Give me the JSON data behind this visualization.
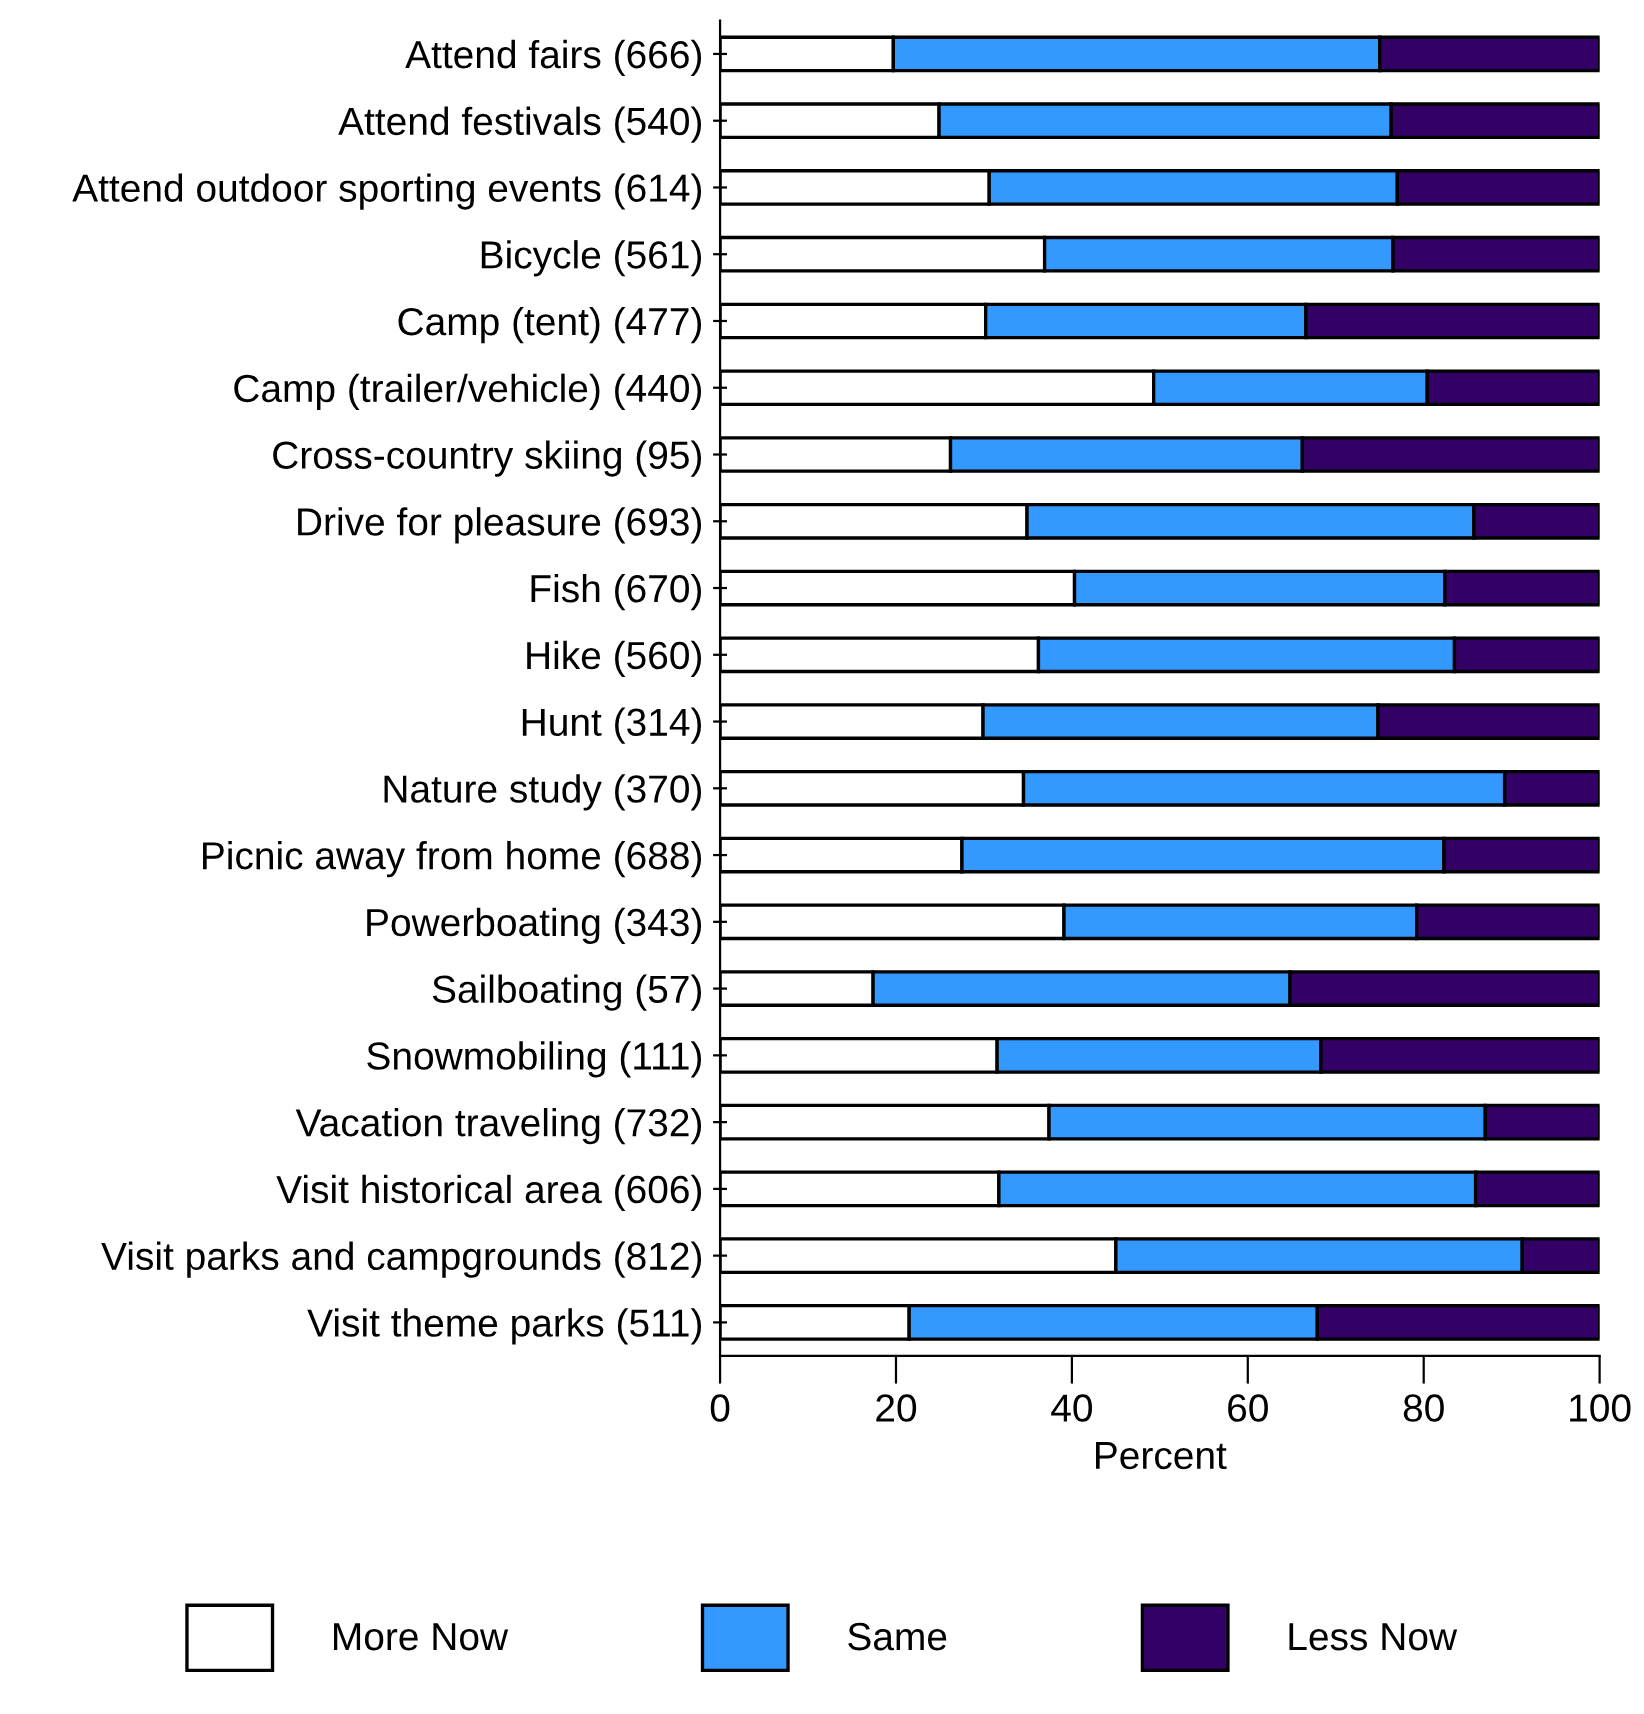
{
  "chart_data": {
    "type": "bar",
    "orientation": "horizontal",
    "stacked": true,
    "xlabel": "Percent",
    "categories": [
      "Attend fairs (666)",
      "Attend festivals (540)",
      "Attend outdoor sporting events (614)",
      "Bicycle (561)",
      "Camp (tent) (477)",
      "Camp (trailer/vehicle) (440)",
      "Cross-country skiing (95)",
      "Drive for pleasure (693)",
      "Fish (670)",
      "Hike (560)",
      "Hunt (314)",
      "Nature study (370)",
      "Picnic away from home (688)",
      "Powerboating (343)",
      "Sailboating (57)",
      "Snowmobiling (111)",
      "Vacation traveling (732)",
      "Visit historical area (606)",
      "Visit parks and campgrounds (812)",
      "Visit theme parks (511)"
    ],
    "series": [
      {
        "name": "More Now",
        "color": "#ffffff",
        "values": [
          19.7,
          24.9,
          30.6,
          36.9,
          30.2,
          49.3,
          26.2,
          34.9,
          40.3,
          36.2,
          29.9,
          34.5,
          27.5,
          39.1,
          17.4,
          31.5,
          37.4,
          31.7,
          45.0,
          21.5
        ]
      },
      {
        "name": "Same",
        "color": "#3399ff",
        "values": [
          55.3,
          51.4,
          46.4,
          39.6,
          36.4,
          31.1,
          40.0,
          50.8,
          42.1,
          47.3,
          44.9,
          54.7,
          54.8,
          40.1,
          47.4,
          36.8,
          49.6,
          54.2,
          46.2,
          46.4
        ]
      },
      {
        "name": "Less Now",
        "color": "#330066",
        "values": [
          25.0,
          23.7,
          23.0,
          23.5,
          33.4,
          19.6,
          33.8,
          14.3,
          17.6,
          16.5,
          25.2,
          10.8,
          17.7,
          20.8,
          35.2,
          31.7,
          13.0,
          14.1,
          8.8,
          32.1
        ]
      }
    ],
    "xlim": [
      0,
      100
    ],
    "xticks": [
      0,
      20,
      40,
      60,
      80,
      100
    ],
    "grid": false,
    "legend": "bottom"
  }
}
